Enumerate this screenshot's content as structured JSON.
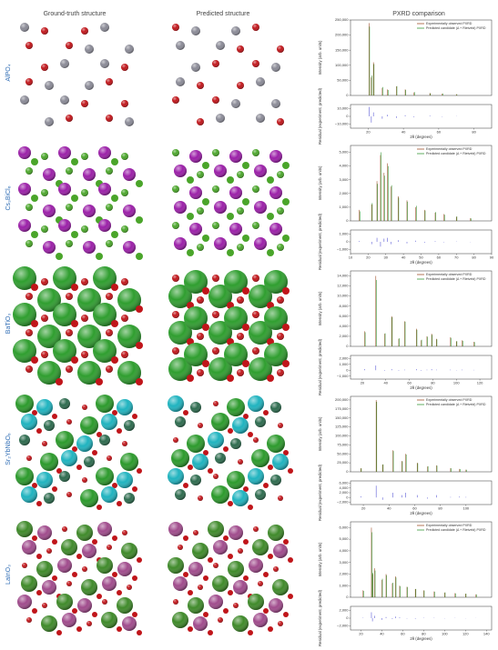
{
  "headers": [
    "Ground-truth structure",
    "Predicted structure",
    "PXRD comparison"
  ],
  "rows": [
    "AlPO₄",
    "Cs₃BiCl₆",
    "BaTiO₃",
    "Sr₂YbNbO₆",
    "LaInO₃"
  ],
  "chart_data": [
    {
      "type": "line",
      "y_label": "Intensity (arb. units)",
      "xlim": [
        10,
        90
      ],
      "ylim": [
        0,
        250000
      ],
      "yticks": [
        0,
        {
          "value": 50000,
          "label": "50,000"
        },
        {
          "value": 100000,
          "label": "100,000"
        },
        {
          "value": 150000,
          "label": "150,000"
        },
        {
          "value": 200000,
          "label": "200,000"
        },
        {
          "value": 250000,
          "label": "250,000"
        }
      ],
      "x": [
        20.5,
        21.8,
        23,
        28,
        31,
        36,
        41,
        46,
        55,
        62,
        70
      ],
      "series": [
        {
          "name": "Experimentally observed PXRD",
          "color": "#a0522d",
          "values": [
            240000,
            60000,
            110000,
            25000,
            20000,
            30000,
            20000,
            10000,
            8000,
            6000,
            4000
          ]
        },
        {
          "name": "Predicted candidate (Δ + Rietveld) PXRD",
          "color": "#3a9a3a",
          "values": [
            228000,
            66000,
            104000,
            28000,
            18000,
            31000,
            18500,
            11000,
            7000,
            6500,
            3700
          ]
        }
      ]
    },
    {
      "type": "residual",
      "x_label": "2θ (degrees)",
      "y_label": "Residual (experiment, predicted)",
      "xlim": [
        10,
        90
      ],
      "xticks": [
        20,
        40,
        60,
        80
      ],
      "ylim": [
        -15000,
        15000
      ],
      "yticks": [
        {
          "value": -10000,
          "label": "−10,000"
        },
        0,
        {
          "value": 10000,
          "label": "10,000"
        }
      ],
      "x": [
        20.5,
        21.8,
        23,
        28,
        31,
        36,
        41,
        46,
        55,
        62,
        70
      ],
      "color": "#5b5bd6",
      "values": [
        12000,
        -8000,
        5000,
        -3000,
        2000,
        -2000,
        1500,
        -1000,
        800,
        -500,
        300
      ]
    },
    {
      "type": "line",
      "y_label": "Intensity (arb. units)",
      "xlim": [
        10,
        90
      ],
      "ylim": [
        0,
        5500
      ],
      "yticks": [
        0,
        {
          "value": 1000,
          "label": "1,000"
        },
        {
          "value": 2000,
          "label": "2,000"
        },
        {
          "value": 3000,
          "label": "3,000"
        },
        {
          "value": 4000,
          "label": "4,000"
        },
        {
          "value": 5000,
          "label": "5,000"
        }
      ],
      "x": [
        15,
        22,
        25,
        27,
        29,
        31,
        33,
        37,
        42,
        47,
        52,
        58,
        63,
        70,
        78
      ],
      "series": [
        {
          "name": "Experimentally observed PXRD",
          "color": "#a0522d",
          "values": [
            800,
            1200,
            2900,
            4800,
            3500,
            4200,
            2500,
            1800,
            1500,
            1000,
            800,
            600,
            500,
            300,
            200
          ]
        },
        {
          "name": "Predicted candidate (Δ + Rietveld) PXRD",
          "color": "#3a9a3a",
          "values": [
            700,
            1300,
            2700,
            5000,
            3300,
            4000,
            2600,
            1700,
            1400,
            1100,
            750,
            650,
            450,
            320,
            180
          ]
        }
      ]
    },
    {
      "type": "residual",
      "x_label": "2θ (degrees)",
      "y_label": "Residual (experiment, predicted)",
      "xlim": [
        10,
        90
      ],
      "xticks": [
        10,
        20,
        30,
        40,
        50,
        60,
        70,
        80,
        90
      ],
      "ylim": [
        -1500,
        1500
      ],
      "yticks": [
        {
          "value": -1000,
          "label": "−1,000"
        },
        0,
        {
          "value": 1000,
          "label": "1,000"
        }
      ],
      "x": [
        15,
        22,
        25,
        27,
        29,
        31,
        33,
        37,
        42,
        47,
        52,
        58,
        63,
        70,
        78
      ],
      "color": "#5b5bd6",
      "values": [
        100,
        -300,
        500,
        -600,
        400,
        500,
        -300,
        200,
        -200,
        150,
        -100,
        80,
        -60,
        40,
        -30
      ]
    },
    {
      "type": "line",
      "y_label": "Intensity (arb. units)",
      "xlim": [
        10,
        130
      ],
      "ylim": [
        0,
        15000
      ],
      "yticks": [
        0,
        {
          "value": 2000,
          "label": "2,000"
        },
        {
          "value": 4000,
          "label": "4,000"
        },
        {
          "value": 6000,
          "label": "6,000"
        },
        {
          "value": 8000,
          "label": "8,000"
        },
        {
          "value": 10000,
          "label": "10,000"
        },
        {
          "value": 12000,
          "label": "12,000"
        },
        {
          "value": 14000,
          "label": "14,000"
        }
      ],
      "x": [
        22,
        31.5,
        39,
        45,
        51,
        56,
        66,
        70,
        75,
        79,
        83,
        95,
        100,
        105,
        115
      ],
      "series": [
        {
          "name": "Experimentally observed PXRD",
          "color": "#a0522d",
          "values": [
            3000,
            14000,
            2500,
            6000,
            1500,
            5000,
            3500,
            1200,
            2000,
            2500,
            1500,
            1800,
            1000,
            1200,
            900
          ]
        },
        {
          "name": "Predicted candidate (Δ + Rietveld) PXRD",
          "color": "#3a9a3a",
          "values": [
            2800,
            13200,
            2600,
            5800,
            1600,
            4900,
            3300,
            1300,
            1900,
            2300,
            1400,
            1700,
            1050,
            1100,
            850
          ]
        }
      ]
    },
    {
      "type": "residual",
      "x_label": "2θ (degrees)",
      "y_label": "Residual (experiment, predicted)",
      "xlim": [
        10,
        130
      ],
      "xticks": [
        20,
        40,
        60,
        80,
        100,
        120
      ],
      "ylim": [
        -1500,
        2500
      ],
      "yticks": [
        {
          "value": -1000,
          "label": "−1,000"
        },
        0,
        {
          "value": 1000,
          "label": "1,000"
        },
        {
          "value": 2000,
          "label": "2,000"
        }
      ],
      "x": [
        22,
        31.5,
        39,
        45,
        51,
        56,
        66,
        70,
        75,
        79,
        83,
        95,
        100,
        105,
        115
      ],
      "color": "#5b5bd6",
      "values": [
        200,
        800,
        -100,
        200,
        -100,
        100,
        200,
        -100,
        100,
        200,
        100,
        100,
        -50,
        100,
        50
      ]
    },
    {
      "type": "line",
      "y_label": "Intensity (arb. units)",
      "xlim": [
        10,
        120
      ],
      "ylim": [
        0,
        210000
      ],
      "yticks": [
        0,
        {
          "value": 25000,
          "label": "25,000"
        },
        {
          "value": 50000,
          "label": "50,000"
        },
        {
          "value": 75000,
          "label": "75,000"
        },
        {
          "value": 100000,
          "label": "100,000"
        },
        {
          "value": 125000,
          "label": "125,000"
        },
        {
          "value": 150000,
          "label": "150,000"
        },
        {
          "value": 175000,
          "label": "175,000"
        },
        {
          "value": 200000,
          "label": "200,000"
        }
      ],
      "x": [
        18,
        30,
        35,
        43,
        50,
        53,
        62,
        70,
        77,
        88,
        95,
        100
      ],
      "series": [
        {
          "name": "Experimentally observed PXRD",
          "color": "#a0522d",
          "values": [
            10000,
            200000,
            20000,
            60000,
            30000,
            50000,
            25000,
            15000,
            18000,
            10000,
            8000,
            6000
          ]
        },
        {
          "name": "Predicted candidate (Δ + Rietveld) PXRD",
          "color": "#3a9a3a",
          "values": [
            9500,
            195000,
            21000,
            58000,
            29000,
            48000,
            24000,
            15500,
            17000,
            9800,
            7600,
            5800
          ]
        }
      ]
    },
    {
      "type": "residual",
      "x_label": "2θ (degrees)",
      "y_label": "Residual (experiment, predicted)",
      "xlim": [
        10,
        120
      ],
      "xticks": [
        20,
        40,
        60,
        80,
        100
      ],
      "ylim": [
        -3000,
        7000
      ],
      "yticks": [
        {
          "value": -2000,
          "label": "−2,000"
        },
        0,
        {
          "value": 2000,
          "label": "2,000"
        },
        {
          "value": 4000,
          "label": "4,000"
        },
        {
          "value": 6000,
          "label": "6,000"
        }
      ],
      "x": [
        18,
        30,
        35,
        43,
        50,
        53,
        62,
        70,
        77,
        88,
        95,
        100
      ],
      "color": "#5b5bd6",
      "values": [
        500,
        5000,
        -1000,
        2000,
        1000,
        2000,
        1000,
        -500,
        1000,
        200,
        400,
        200
      ]
    },
    {
      "type": "line",
      "y_label": "Intensity (arb. units)",
      "xlim": [
        10,
        145
      ],
      "ylim": [
        0,
        6500
      ],
      "yticks": [
        0,
        {
          "value": 1000,
          "label": "1,000"
        },
        {
          "value": 2000,
          "label": "2,000"
        },
        {
          "value": 3000,
          "label": "3,000"
        },
        {
          "value": 4000,
          "label": "4,000"
        },
        {
          "value": 5000,
          "label": "5,000"
        },
        {
          "value": 6000,
          "label": "6,000"
        }
      ],
      "x": [
        22,
        30,
        31,
        33,
        40,
        44,
        50,
        53,
        57,
        64,
        72,
        80,
        90,
        100,
        110,
        120,
        130
      ],
      "series": [
        {
          "name": "Experimentally observed PXRD",
          "color": "#a0522d",
          "values": [
            600,
            6000,
            2000,
            2500,
            1500,
            2000,
            1200,
            1800,
            1000,
            900,
            700,
            600,
            500,
            400,
            350,
            300,
            250
          ]
        },
        {
          "name": "Predicted candidate (Δ + Rietveld) PXRD",
          "color": "#3a9a3a",
          "values": [
            550,
            5600,
            2100,
            2300,
            1600,
            1900,
            1250,
            1700,
            950,
            880,
            720,
            580,
            480,
            420,
            330,
            310,
            240
          ]
        }
      ]
    },
    {
      "type": "residual",
      "x_label": "2θ (degrees)",
      "y_label": "Residual (experiment, predicted)",
      "xlim": [
        10,
        145
      ],
      "xticks": [
        20,
        40,
        60,
        80,
        100,
        120,
        140
      ],
      "ylim": [
        -3000,
        3000
      ],
      "yticks": [
        {
          "value": -2000,
          "label": "−2,000"
        },
        0,
        {
          "value": 2000,
          "label": "2,000"
        }
      ],
      "x": [
        22,
        30,
        31,
        33,
        40,
        44,
        50,
        53,
        57,
        64,
        72,
        80,
        90,
        100,
        110,
        120,
        130
      ],
      "color": "#5b5bd6",
      "values": [
        100,
        1500,
        -800,
        600,
        -400,
        300,
        -200,
        400,
        200,
        -100,
        -150,
        100,
        80,
        -60,
        50,
        -40,
        30
      ]
    }
  ]
}
